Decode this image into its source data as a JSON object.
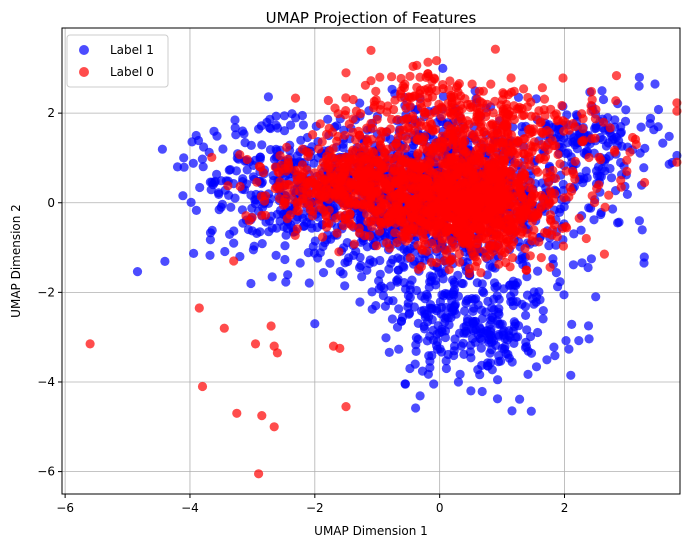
{
  "chart_data": {
    "type": "scatter",
    "title": "UMAP Projection of Features",
    "xlabel": "UMAP Dimension 1",
    "ylabel": "UMAP Dimension 2",
    "xlim": [
      -6.05,
      3.85
    ],
    "ylim": [
      -6.5,
      3.9
    ],
    "x_ticks": [
      -6,
      -4,
      -2,
      0,
      2
    ],
    "y_ticks": [
      -6,
      -4,
      -2,
      0,
      2
    ],
    "x_tick_labels": [
      "−6",
      "−4",
      "−2",
      "0",
      "2"
    ],
    "y_tick_labels": [
      "−6",
      "−4",
      "−2",
      "0",
      "2"
    ],
    "grid": true,
    "legend_position": "top-left",
    "series": [
      {
        "name": "Label 1",
        "color": "#0000ff",
        "clusters": [
          {
            "cx": 0.0,
            "cy": 0.1,
            "sx": 1.05,
            "sy": 0.95,
            "n": 1100
          },
          {
            "cx": -2.3,
            "cy": 0.3,
            "sx": 0.9,
            "sy": 0.75,
            "n": 380
          },
          {
            "cx": 0.5,
            "cy": -2.6,
            "sx": 0.75,
            "sy": 0.65,
            "n": 300
          },
          {
            "cx": 2.5,
            "cy": 1.3,
            "sx": 0.5,
            "sy": 0.55,
            "n": 140
          }
        ],
        "outliers": [
          {
            "x": -4.2,
            "y": 0.8
          },
          {
            "x": -4.1,
            "y": 1.0
          },
          {
            "x": -3.9,
            "y": 1.5
          },
          {
            "x": -3.5,
            "y": -0.1
          },
          {
            "x": -3.3,
            "y": -0.9
          },
          {
            "x": -3.2,
            "y": -1.2
          },
          {
            "x": 3.2,
            "y": 2.8
          },
          {
            "x": 3.45,
            "y": 2.65
          },
          {
            "x": 3.2,
            "y": -0.4
          },
          {
            "x": 2.85,
            "y": -0.45
          },
          {
            "x": 2.1,
            "y": -3.85
          },
          {
            "x": 2.5,
            "y": -2.1
          },
          {
            "x": 0.5,
            "y": -4.2
          },
          {
            "x": -0.55,
            "y": -4.05
          },
          {
            "x": 0.3,
            "y": -4.0
          },
          {
            "x": 2.9,
            "y": 1.7
          },
          {
            "x": 2.6,
            "y": 2.5
          },
          {
            "x": -2.0,
            "y": -2.7
          }
        ]
      },
      {
        "name": "Label 0",
        "color": "#ff0000",
        "clusters": [
          {
            "cx": 0.5,
            "cy": -0.1,
            "sx": 0.65,
            "sy": 0.55,
            "n": 900
          },
          {
            "cx": -1.3,
            "cy": 0.4,
            "sx": 0.7,
            "sy": 0.5,
            "n": 550
          },
          {
            "cx": 0.6,
            "cy": 1.5,
            "sx": 1.1,
            "sy": 0.6,
            "n": 450
          },
          {
            "cx": -0.1,
            "cy": 2.4,
            "sx": 0.6,
            "sy": 0.35,
            "n": 70
          }
        ],
        "outliers": [
          {
            "x": -5.6,
            "y": -3.15
          },
          {
            "x": -3.85,
            "y": -2.35
          },
          {
            "x": -3.8,
            "y": -4.1
          },
          {
            "x": -3.45,
            "y": -2.8
          },
          {
            "x": -3.25,
            "y": -4.7
          },
          {
            "x": -2.85,
            "y": -4.75
          },
          {
            "x": -2.65,
            "y": -5.0
          },
          {
            "x": -2.9,
            "y": -6.05
          },
          {
            "x": -2.95,
            "y": -3.15
          },
          {
            "x": -2.65,
            "y": -3.2
          },
          {
            "x": -2.6,
            "y": -3.35
          },
          {
            "x": -2.7,
            "y": -2.75
          },
          {
            "x": -1.5,
            "y": -4.55
          },
          {
            "x": -1.6,
            "y": -3.25
          },
          {
            "x": -1.7,
            "y": -3.2
          },
          {
            "x": -1.1,
            "y": 3.4
          },
          {
            "x": -1.5,
            "y": 2.9
          },
          {
            "x": 3.0,
            "y": 0.7
          },
          {
            "x": 2.65,
            "y": -0.1
          },
          {
            "x": 2.9,
            "y": 0.5
          },
          {
            "x": 3.15,
            "y": 1.3
          },
          {
            "x": -3.3,
            "y": -1.3
          },
          {
            "x": -3.05,
            "y": -0.4
          },
          {
            "x": 2.55,
            "y": 0.4
          }
        ]
      }
    ],
    "seed": 7
  }
}
